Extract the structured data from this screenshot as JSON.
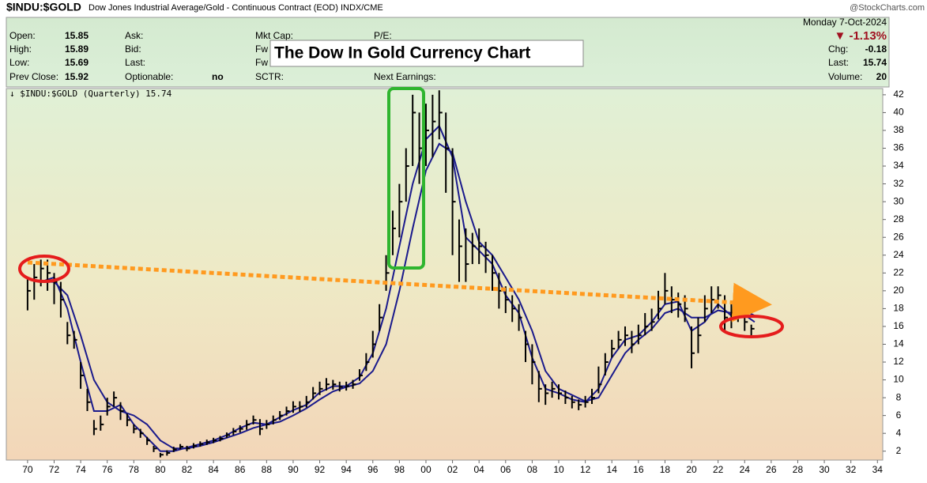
{
  "header": {
    "symbol": "$INDU:$GOLD",
    "description": "Dow Jones Industrial Average/Gold - Continuous Contract (EOD) INDX/CME",
    "brand": "@StockCharts.com",
    "date": "Monday  7-Oct-2024",
    "fields": [
      [
        "Open:",
        "15.85"
      ],
      [
        "High:",
        "15.89"
      ],
      [
        "Low:",
        "15.69"
      ],
      [
        "Prev Close:",
        "15.92"
      ]
    ],
    "fields2": [
      "Ask:",
      "Bid:",
      "Last:",
      "Optionable:"
    ],
    "optionable": "no",
    "fields3": [
      "Mkt Cap:",
      "Fw",
      "Fw",
      "SCTR:"
    ],
    "fields4": [
      "P/E:",
      "",
      "",
      "Next Earnings:"
    ],
    "change_pct": "▼ -1.13%",
    "right": [
      [
        "Chg:",
        "-0.18"
      ],
      [
        "Last:",
        "15.74"
      ],
      [
        "Volume:",
        "20"
      ]
    ],
    "annotation": "The Dow In Gold Currency Chart"
  },
  "chart_data": {
    "type": "ohlc",
    "legend_label": "↓ $INDU:$GOLD (Quarterly) 15.74",
    "color": "#000000",
    "x": [
      1970,
      1970.5,
      1971,
      1971.5,
      1972,
      1972.5,
      1973,
      1973.5,
      1974,
      1974.5,
      1975,
      1975.5,
      1976,
      1976.5,
      1977,
      1977.5,
      1978,
      1978.5,
      1979,
      1979.5,
      1980,
      1980.5,
      1981,
      1981.5,
      1982,
      1982.5,
      1983,
      1983.5,
      1984,
      1984.5,
      1985,
      1985.5,
      1986,
      1986.5,
      1987,
      1987.5,
      1988,
      1988.5,
      1989,
      1989.5,
      1990,
      1990.5,
      1991,
      1991.5,
      1992,
      1992.5,
      1993,
      1993.5,
      1994,
      1994.5,
      1995,
      1995.5,
      1996,
      1996.5,
      1997,
      1997.5,
      1998,
      1998.5,
      1999,
      1999.5,
      2000,
      2000.5,
      2001,
      2001.5,
      2002,
      2002.5,
      2003,
      2003.5,
      2004,
      2004.5,
      2005,
      2005.5,
      2006,
      2006.5,
      2007,
      2007.5,
      2008,
      2008.5,
      2009,
      2009.5,
      2010,
      2010.5,
      2011,
      2011.5,
      2012,
      2012.5,
      2013,
      2013.5,
      2014,
      2014.5,
      2015,
      2015.5,
      2016,
      2016.5,
      2017,
      2017.5,
      2018,
      2018.5,
      2019,
      2019.5,
      2020,
      2020.5,
      2021,
      2021.5,
      2022,
      2022.5,
      2023,
      2023.5,
      2024,
      2024.5
    ],
    "high": [
      21.5,
      23,
      23.5,
      23.5,
      22,
      21,
      16.5,
      15.5,
      12,
      9,
      5.5,
      6,
      8,
      8.7,
      7.5,
      6.2,
      5,
      4.5,
      3.6,
      2.6,
      1.8,
      2.1,
      2.5,
      2.8,
      2.6,
      2.9,
      3.1,
      3.3,
      3.5,
      3.7,
      4.1,
      4.6,
      4.9,
      5.5,
      6,
      5.6,
      5.5,
      6,
      6.5,
      7,
      7.6,
      7.6,
      8.2,
      9.2,
      9.8,
      10.2,
      10,
      9.8,
      9.8,
      10,
      11.2,
      13,
      15.5,
      18.5,
      24,
      29,
      32,
      36,
      42,
      40,
      41,
      42,
      42.5,
      40,
      36,
      28,
      27,
      26.5,
      27,
      25.5,
      24,
      22,
      20.5,
      19.5,
      18.5,
      15.5,
      14,
      11,
      9.5,
      9.8,
      9.5,
      8.8,
      8.2,
      7.8,
      8.2,
      9,
      11.5,
      13,
      14.5,
      15.5,
      16,
      15.5,
      16.2,
      17.5,
      18,
      20,
      22,
      20.5,
      19.8,
      19.5,
      16,
      17,
      19.5,
      20.5,
      20.5,
      19.5,
      18.5,
      18.5,
      17.5,
      16.2
    ],
    "low": [
      17.8,
      19,
      20.5,
      20,
      18.5,
      17,
      14,
      13.5,
      9,
      6.5,
      3.8,
      4.3,
      6,
      7,
      5.5,
      4.8,
      4,
      3.5,
      2.7,
      1.9,
      1.3,
      1.5,
      1.9,
      2.2,
      2,
      2.3,
      2.5,
      2.7,
      2.9,
      3.1,
      3.5,
      3.8,
      4.1,
      4.4,
      5,
      3.8,
      4.5,
      5,
      5.5,
      6,
      6.3,
      6.4,
      6.9,
      7.8,
      8.3,
      8.8,
      8.9,
      8.7,
      8.8,
      9,
      9.9,
      11,
      12.5,
      15.5,
      20,
      24,
      26,
      30,
      34,
      32,
      34,
      35,
      37,
      31,
      24,
      21,
      21,
      23,
      23,
      22,
      20,
      18,
      17.5,
      16.5,
      15.5,
      12,
      9.5,
      7.5,
      7.2,
      8,
      7.8,
      7.3,
      6.8,
      6.6,
      6.9,
      7.3,
      8.5,
      10.5,
      12.5,
      13.5,
      13.8,
      13,
      14,
      15,
      15.5,
      16.8,
      18.5,
      17.5,
      17,
      16.5,
      11.3,
      13,
      16.5,
      17.5,
      18,
      15.5,
      15.8,
      16.5,
      15.5,
      14.8
    ],
    "close": [
      20,
      21.5,
      22.5,
      22,
      21,
      19,
      15,
      14.5,
      10.5,
      7.5,
      4.5,
      5,
      7,
      8,
      6.5,
      5.5,
      4.5,
      4,
      3.2,
      2.3,
      1.6,
      1.8,
      2.2,
      2.5,
      2.3,
      2.6,
      2.8,
      3,
      3.2,
      3.4,
      3.8,
      4.2,
      4.5,
      5,
      5.5,
      4.5,
      5,
      5.5,
      6,
      6.5,
      7,
      7,
      7.5,
      8.5,
      9,
      9.5,
      9.5,
      9.2,
      9.3,
      9.5,
      10.5,
      12,
      14,
      17,
      22,
      27,
      30,
      34,
      40,
      36,
      38,
      39,
      40,
      36,
      30,
      25,
      23,
      25,
      25,
      24,
      22,
      20,
      19,
      18,
      17,
      14,
      12,
      9,
      8.5,
      9,
      8.5,
      8,
      7.5,
      7.2,
      7.5,
      8,
      9.5,
      12,
      13.5,
      14.5,
      15,
      14,
      15,
      16,
      16.5,
      18,
      20,
      19,
      18.5,
      18,
      13,
      15,
      18,
      19,
      19.5,
      17,
      17,
      17.5,
      16.5,
      15.74
    ],
    "ma_x": [
      1971,
      1972,
      1973,
      1974,
      1975,
      1976,
      1977,
      1978,
      1979,
      1980,
      1981,
      1982,
      1983,
      1984,
      1985,
      1986,
      1987,
      1988,
      1989,
      1990,
      1991,
      1992,
      1993,
      1994,
      1995,
      1996,
      1997,
      1998,
      1999,
      2000,
      2001,
      2002,
      2003,
      2004,
      2005,
      2006,
      2007,
      2008,
      2009,
      2010,
      2011,
      2012,
      2013,
      2014,
      2015,
      2016,
      2017,
      2018,
      2019,
      2020,
      2021,
      2022,
      2023,
      2024,
      2024.75
    ],
    "moving_averages": [
      {
        "color": "#1a1a8c",
        "values": [
          21,
          21.5,
          18,
          12,
          6.5,
          6.5,
          7.2,
          5,
          3.5,
          2,
          2,
          2.4,
          2.8,
          3.2,
          3.8,
          4.6,
          5.2,
          5,
          5.8,
          6.6,
          7.2,
          8.6,
          9.3,
          9.3,
          10.3,
          13,
          18,
          25,
          32,
          37,
          38.5,
          35,
          26,
          24.5,
          23,
          19.5,
          17.5,
          12.5,
          9,
          8.5,
          7.8,
          7.5,
          9,
          12.5,
          14.5,
          15,
          16.5,
          18.5,
          18.8,
          15.5,
          16.5,
          18.5,
          17.2,
          17.3,
          16.5
        ]
      },
      {
        "color": "#1a1a8c",
        "values": [
          21,
          21,
          19.5,
          15,
          10,
          7.5,
          6.5,
          6,
          5,
          3.2,
          2.3,
          2.3,
          2.6,
          3,
          3.5,
          4,
          4.6,
          5,
          5.3,
          6,
          6.8,
          7.8,
          8.7,
          9.2,
          9.6,
          11,
          14,
          20,
          27,
          33.5,
          36.5,
          35.5,
          30,
          25.5,
          24,
          21.5,
          19,
          15.5,
          11,
          9,
          8.3,
          7.6,
          8,
          10.5,
          13,
          14.5,
          15.7,
          17.5,
          18,
          17,
          17,
          17.8,
          17.5,
          17.8,
          17.2
        ]
      }
    ],
    "xlim": [
      1968.4,
      2034.4
    ],
    "xticks": [
      {
        "value": 1970,
        "label": "70"
      },
      {
        "value": 1972,
        "label": "72"
      },
      {
        "value": 1974,
        "label": "74"
      },
      {
        "value": 1976,
        "label": "76"
      },
      {
        "value": 1978,
        "label": "78"
      },
      {
        "value": 1980,
        "label": "80"
      },
      {
        "value": 1982,
        "label": "82"
      },
      {
        "value": 1984,
        "label": "84"
      },
      {
        "value": 1986,
        "label": "86"
      },
      {
        "value": 1988,
        "label": "88"
      },
      {
        "value": 1990,
        "label": "90"
      },
      {
        "value": 1992,
        "label": "92"
      },
      {
        "value": 1994,
        "label": "94"
      },
      {
        "value": 1996,
        "label": "96"
      },
      {
        "value": 1998,
        "label": "98"
      },
      {
        "value": 2000,
        "label": "00"
      },
      {
        "value": 2002,
        "label": "02"
      },
      {
        "value": 2004,
        "label": "04"
      },
      {
        "value": 2006,
        "label": "06"
      },
      {
        "value": 2008,
        "label": "08"
      },
      {
        "value": 2010,
        "label": "10"
      },
      {
        "value": 2012,
        "label": "12"
      },
      {
        "value": 2014,
        "label": "14"
      },
      {
        "value": 2016,
        "label": "16"
      },
      {
        "value": 2018,
        "label": "18"
      },
      {
        "value": 2020,
        "label": "20"
      },
      {
        "value": 2022,
        "label": "22"
      },
      {
        "value": 2024,
        "label": "24"
      },
      {
        "value": 2026,
        "label": "26"
      },
      {
        "value": 2028,
        "label": "28"
      },
      {
        "value": 2030,
        "label": "30"
      },
      {
        "value": 2032,
        "label": "32"
      },
      {
        "value": 2034,
        "label": "34"
      }
    ],
    "ylim": [
      1,
      42.7
    ],
    "yticks": [
      2,
      4,
      6,
      8,
      10,
      12,
      14,
      16,
      18,
      20,
      22,
      24,
      26,
      28,
      30,
      32,
      34,
      36,
      38,
      40,
      42
    ]
  }
}
